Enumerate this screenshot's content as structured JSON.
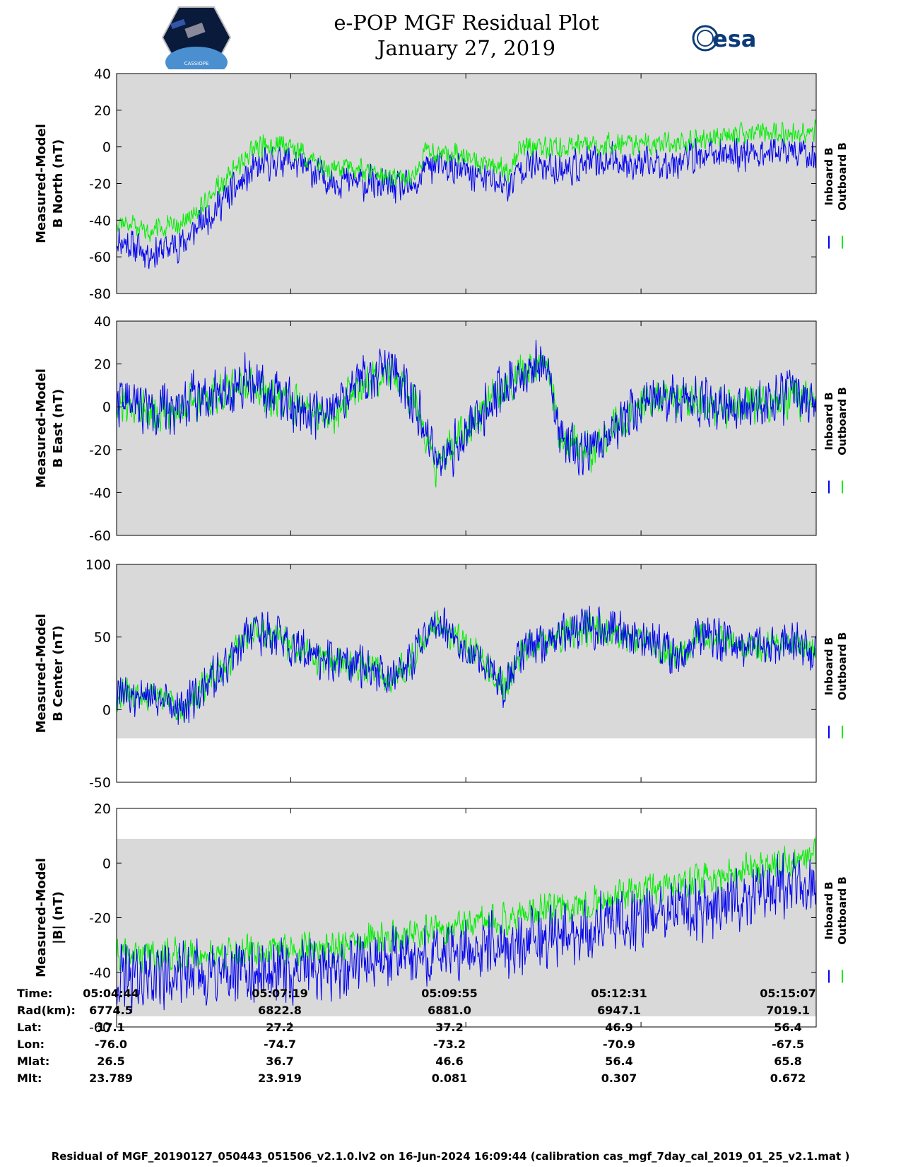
{
  "title": {
    "line1": "e-POP MGF Residual Plot",
    "line2": "January 27, 2019"
  },
  "logos": {
    "left_text": "CASSIOPE",
    "right_text": "esa"
  },
  "colors": {
    "inboard": "#0000ee",
    "outboard": "#00ee00",
    "panel_bg": "#d9d9d9"
  },
  "chart_data": [
    {
      "type": "line",
      "ylabel": [
        "Measured-Model",
        "B North (nT)"
      ],
      "ylim": [
        -80,
        40
      ],
      "yticks": [
        -80,
        -60,
        -40,
        -20,
        0,
        20,
        40
      ],
      "xlim": [
        0,
        623
      ],
      "xticks": [
        0,
        155,
        311,
        467,
        623
      ],
      "legend": [
        "Inboard B",
        "Outboard B"
      ],
      "series": [
        {
          "name": "Inboard B",
          "color": "#0000ee",
          "points": [
            [
              0,
              -50
            ],
            [
              30,
              -58
            ],
            [
              60,
              -52
            ],
            [
              90,
              -32
            ],
            [
              125,
              -12
            ],
            [
              150,
              -6
            ],
            [
              185,
              -17
            ],
            [
              225,
              -20
            ],
            [
              250,
              -22
            ],
            [
              265,
              -24
            ],
            [
              275,
              -10
            ],
            [
              300,
              -12
            ],
            [
              330,
              -17
            ],
            [
              350,
              -22
            ],
            [
              360,
              -10
            ],
            [
              400,
              -12
            ],
            [
              440,
              -7
            ],
            [
              470,
              -10
            ],
            [
              520,
              -5
            ],
            [
              560,
              -3
            ],
            [
              600,
              -3
            ],
            [
              623,
              -5
            ]
          ],
          "noise": 11,
          "seed": 11
        },
        {
          "name": "Outboard B",
          "color": "#00ee00",
          "points": [
            [
              0,
              -40
            ],
            [
              30,
              -46
            ],
            [
              60,
              -42
            ],
            [
              90,
              -22
            ],
            [
              125,
              0
            ],
            [
              150,
              2
            ],
            [
              185,
              -11
            ],
            [
              225,
              -13
            ],
            [
              250,
              -16
            ],
            [
              265,
              -17
            ],
            [
              275,
              -2
            ],
            [
              300,
              -4
            ],
            [
              330,
              -10
            ],
            [
              350,
              -13
            ],
            [
              360,
              0
            ],
            [
              400,
              -1
            ],
            [
              440,
              2
            ],
            [
              470,
              1
            ],
            [
              520,
              4
            ],
            [
              560,
              7
            ],
            [
              600,
              8
            ],
            [
              623,
              8
            ]
          ],
          "noise": 7,
          "seed": 12
        }
      ]
    },
    {
      "type": "line",
      "ylabel": [
        "Measured-Model",
        "B East (nT)"
      ],
      "ylim": [
        -60,
        40
      ],
      "yticks": [
        -60,
        -40,
        -20,
        0,
        20,
        40
      ],
      "xlim": [
        0,
        623
      ],
      "xticks": [
        0,
        155,
        311,
        467,
        623
      ],
      "legend": [
        "Inboard B",
        "Outboard B"
      ],
      "series": [
        {
          "name": "Outboard B",
          "color": "#00ee00",
          "points": [
            [
              0,
              2
            ],
            [
              40,
              -3
            ],
            [
              70,
              3
            ],
            [
              110,
              10
            ],
            [
              115,
              10
            ],
            [
              160,
              0
            ],
            [
              190,
              -5
            ],
            [
              215,
              10
            ],
            [
              240,
              16
            ],
            [
              255,
              13
            ],
            [
              270,
              -6
            ],
            [
              285,
              -28
            ],
            [
              310,
              -12
            ],
            [
              330,
              0
            ],
            [
              355,
              14
            ],
            [
              380,
              20
            ],
            [
              385,
              16
            ],
            [
              395,
              -14
            ],
            [
              420,
              -22
            ],
            [
              460,
              0
            ],
            [
              500,
              4
            ],
            [
              540,
              0
            ],
            [
              580,
              2
            ],
            [
              600,
              5
            ],
            [
              623,
              0
            ]
          ],
          "noise": 11,
          "seed": 21
        },
        {
          "name": "Inboard B",
          "color": "#0000ee",
          "points": [
            [
              0,
              3
            ],
            [
              40,
              -2
            ],
            [
              70,
              5
            ],
            [
              110,
              11
            ],
            [
              115,
              12
            ],
            [
              160,
              0
            ],
            [
              190,
              -4
            ],
            [
              215,
              12
            ],
            [
              240,
              17
            ],
            [
              255,
              14
            ],
            [
              270,
              -5
            ],
            [
              285,
              -30
            ],
            [
              310,
              -12
            ],
            [
              330,
              0
            ],
            [
              355,
              15
            ],
            [
              380,
              21
            ],
            [
              385,
              17
            ],
            [
              395,
              -15
            ],
            [
              420,
              -23
            ],
            [
              460,
              0
            ],
            [
              500,
              5
            ],
            [
              540,
              0
            ],
            [
              580,
              2
            ],
            [
              600,
              6
            ],
            [
              623,
              1
            ]
          ],
          "noise": 14,
          "seed": 22
        }
      ]
    },
    {
      "type": "line",
      "ylabel": [
        "Measured-Model",
        "B Center (nT)"
      ],
      "ylim": [
        -50,
        100
      ],
      "yticks": [
        -50,
        0,
        50,
        100
      ],
      "xlim": [
        0,
        623
      ],
      "xticks": [
        0,
        155,
        311,
        467,
        623
      ],
      "legend": [
        "Inboard B",
        "Outboard B"
      ],
      "series": [
        {
          "name": "Outboard B",
          "color": "#00ee00",
          "points": [
            [
              0,
              10
            ],
            [
              40,
              8
            ],
            [
              60,
              2
            ],
            [
              80,
              18
            ],
            [
              100,
              30
            ],
            [
              105,
              42
            ],
            [
              120,
              55
            ],
            [
              140,
              50
            ],
            [
              170,
              38
            ],
            [
              200,
              32
            ],
            [
              220,
              30
            ],
            [
              245,
              22
            ],
            [
              265,
              35
            ],
            [
              280,
              60
            ],
            [
              300,
              52
            ],
            [
              320,
              38
            ],
            [
              345,
              15
            ],
            [
              360,
              40
            ],
            [
              400,
              52
            ],
            [
              430,
              58
            ],
            [
              470,
              48
            ],
            [
              500,
              38
            ],
            [
              520,
              50
            ],
            [
              560,
              42
            ],
            [
              600,
              46
            ],
            [
              623,
              40
            ]
          ],
          "noise": 13,
          "seed": 31
        },
        {
          "name": "Inboard B",
          "color": "#0000ee",
          "points": [
            [
              0,
              10
            ],
            [
              40,
              8
            ],
            [
              60,
              2
            ],
            [
              80,
              18
            ],
            [
              100,
              30
            ],
            [
              105,
              42
            ],
            [
              120,
              55
            ],
            [
              140,
              50
            ],
            [
              170,
              38
            ],
            [
              200,
              32
            ],
            [
              220,
              30
            ],
            [
              245,
              22
            ],
            [
              265,
              35
            ],
            [
              280,
              60
            ],
            [
              300,
              52
            ],
            [
              320,
              38
            ],
            [
              345,
              15
            ],
            [
              360,
              40
            ],
            [
              400,
              52
            ],
            [
              430,
              58
            ],
            [
              470,
              48
            ],
            [
              500,
              38
            ],
            [
              520,
              50
            ],
            [
              560,
              42
            ],
            [
              600,
              46
            ],
            [
              623,
              40
            ]
          ],
          "noise": 17,
          "seed": 32
        }
      ]
    },
    {
      "type": "line",
      "ylabel": [
        "Measured-Model",
        "|B| (nT)"
      ],
      "ylim": [
        -60,
        20
      ],
      "yticks": [
        -60,
        -40,
        -20,
        0,
        20
      ],
      "xlim": [
        0,
        623
      ],
      "xticks": [
        0,
        155,
        311,
        467,
        623
      ],
      "legend": [
        "Inboard B",
        "Outboard B"
      ],
      "series": [
        {
          "name": "Outboard B",
          "color": "#00ee00",
          "points": [
            [
              0,
              -34
            ],
            [
              100,
              -33
            ],
            [
              200,
              -30
            ],
            [
              300,
              -24
            ],
            [
              400,
              -16
            ],
            [
              500,
              -8
            ],
            [
              623,
              3
            ]
          ],
          "noise": 7,
          "seed": 41
        },
        {
          "name": "Inboard B",
          "color": "#0000ee",
          "points": [
            [
              0,
              -42
            ],
            [
              100,
              -41
            ],
            [
              200,
              -38
            ],
            [
              300,
              -33
            ],
            [
              400,
              -26
            ],
            [
              500,
              -18
            ],
            [
              623,
              -7
            ]
          ],
          "noise": 14,
          "seed": 42
        }
      ]
    }
  ],
  "ephemeris": {
    "labels": [
      "Time:",
      "Rad(km):",
      "Lat:",
      "Lon:",
      "Mlat:",
      "Mlt:"
    ],
    "columns": [
      [
        "05:04:44",
        "6774.5",
        "17.1",
        "-76.0",
        "26.5",
        "23.789"
      ],
      [
        "05:07:19",
        "6822.8",
        "27.2",
        "-74.7",
        "36.7",
        "23.919"
      ],
      [
        "05:09:55",
        "6881.0",
        "37.2",
        "-73.2",
        "46.6",
        "0.081"
      ],
      [
        "05:12:31",
        "6947.1",
        "46.9",
        "-70.9",
        "56.4",
        "0.307"
      ],
      [
        "05:15:07",
        "7019.1",
        "56.4",
        "-67.5",
        "65.8",
        "0.672"
      ]
    ]
  },
  "footer": "Residual of MGF_20190127_050443_051506_v2.1.0.lv2 on 16-Jun-2024 16:09:44 (calibration cas_mgf_7day_cal_2019_01_25_v2.1.mat )"
}
